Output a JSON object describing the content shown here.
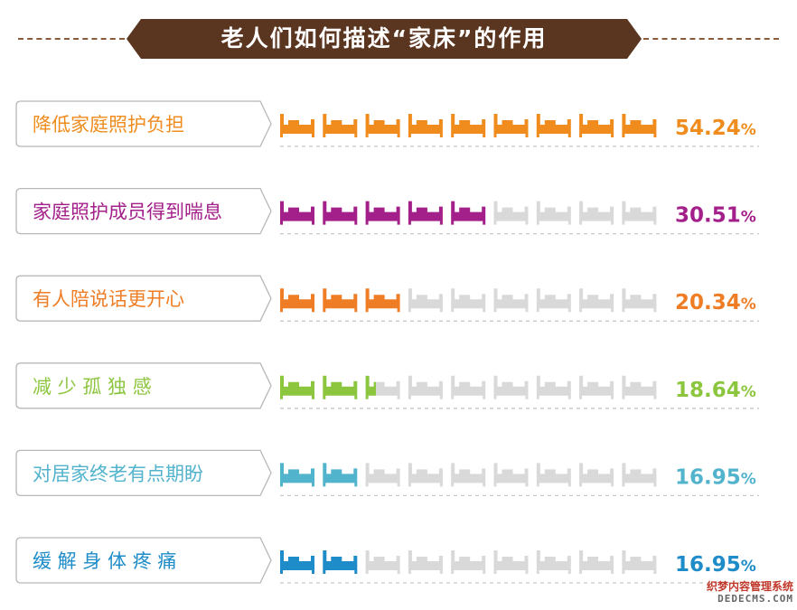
{
  "title": "老人们如何描述“家床”的作用",
  "watermark": {
    "text_cn": "织梦内容管理系统",
    "text_en": "DEDECMS.COM"
  },
  "colors": {
    "title_bg": "#5a3520",
    "empty_icon": "#d9d9d9",
    "frame_border": "#b8b8b8",
    "row_dashes": "#c8c8c8"
  },
  "chart_data": {
    "type": "bar",
    "icons_per_row": 9,
    "categories": [
      "降低家庭照护负担",
      "家庭照护成员得到喘息",
      "有人陪说话更开心",
      "减少孤独感",
      "对居家终老有点期盼",
      "缓解身体疼痛"
    ],
    "category_labels": [
      "降低家庭照护负担",
      "家庭照护成员得到喘息",
      "有人陪说话更开心",
      "减 少 孤 独 感",
      "对居家终老有点期盼",
      "缓 解 身 体 疼 痛"
    ],
    "values": [
      54.24,
      30.51,
      20.34,
      18.64,
      16.95,
      16.95
    ],
    "value_labels": [
      "54.24",
      "30.51",
      "20.34",
      "18.64",
      "16.95",
      "16.95"
    ],
    "percent_sign": "%",
    "filled_icons": [
      9,
      5,
      3,
      2.3,
      2,
      2
    ],
    "colors": [
      "#ef8c1d",
      "#a31f89",
      "#ee7d25",
      "#8cc63e",
      "#52b3cd",
      "#1e8cc8"
    ]
  }
}
